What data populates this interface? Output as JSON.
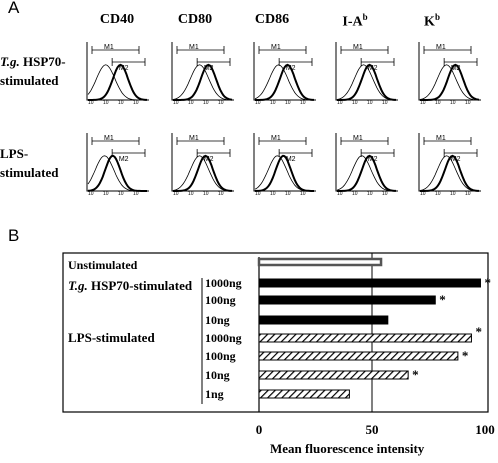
{
  "panel_a": {
    "letter": "A",
    "columns": [
      {
        "name": "CD40",
        "sup": ""
      },
      {
        "name": "CD80",
        "sup": ""
      },
      {
        "name": "CD86",
        "sup": ""
      },
      {
        "name": "I-A",
        "sup": "b"
      },
      {
        "name": "K",
        "sup": "b"
      }
    ],
    "rows": [
      {
        "italic": "T.g.",
        "line1": " HSP70-",
        "line2": "stimulated"
      },
      {
        "italic": "",
        "line1": "LPS-",
        "line2": "stimulated"
      }
    ],
    "gate_labels": [
      "M1",
      "M2"
    ],
    "tick_label": "10"
  },
  "panel_b": {
    "letter": "B",
    "labels": {
      "unstimulated": "Unstimulated",
      "tg_italic": "T.g.",
      "tg_rest": " HSP70-stimulated",
      "lps": "LPS-stimulated"
    },
    "significance_mark": "*"
  },
  "chart_data": {
    "type": "bar",
    "xlabel": "Mean fluorescence intensity",
    "xlim": [
      0,
      100
    ],
    "xticks": [
      0,
      50,
      100
    ],
    "reference_line": 50,
    "bars": [
      {
        "group": "Unstimulated",
        "dose": "",
        "value": 54,
        "style": "gray",
        "significant": false
      },
      {
        "group": "T.g. HSP70-stimulated",
        "dose": "1000ng",
        "value": 98,
        "style": "solid",
        "significant": true
      },
      {
        "group": "T.g. HSP70-stimulated",
        "dose": "100ng",
        "value": 78,
        "style": "solid",
        "significant": true
      },
      {
        "group": "T.g. HSP70-stimulated",
        "dose": "10ng",
        "value": 57,
        "style": "solid",
        "significant": false
      },
      {
        "group": "LPS-stimulated",
        "dose": "1000ng",
        "value": 94,
        "style": "hatched",
        "significant": true
      },
      {
        "group": "LPS-stimulated",
        "dose": "100ng",
        "value": 88,
        "style": "hatched",
        "significant": true
      },
      {
        "group": "LPS-stimulated",
        "dose": "10ng",
        "value": 66,
        "style": "hatched",
        "significant": true
      },
      {
        "group": "LPS-stimulated",
        "dose": "1ng",
        "value": 40,
        "style": "hatched",
        "significant": false
      }
    ]
  }
}
